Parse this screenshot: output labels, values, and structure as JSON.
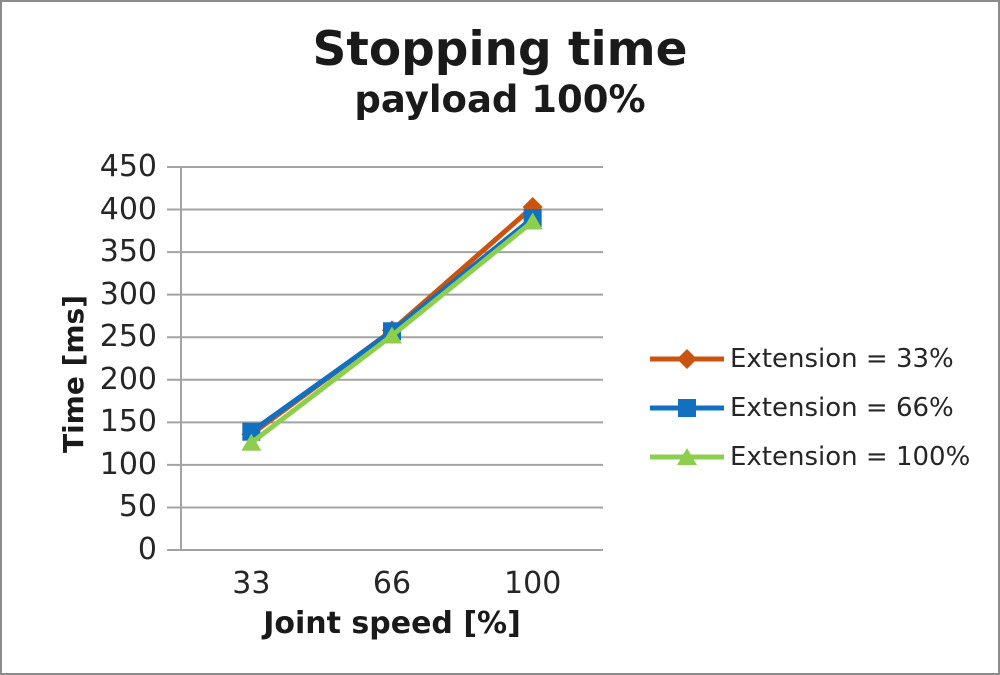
{
  "chart_data": {
    "type": "line",
    "title": "Stopping time",
    "subtitle": "payload 100%",
    "xlabel": "Joint speed [%]",
    "ylabel": "Time [ms]",
    "categories": [
      "33",
      "66",
      "100"
    ],
    "series": [
      {
        "name": "Extension = 33%",
        "color": "#C8540F",
        "marker": "diamond",
        "values": [
          136,
          258,
          403
        ]
      },
      {
        "name": "Extension = 66%",
        "color": "#1170C0",
        "marker": "square",
        "values": [
          139,
          257,
          390
        ]
      },
      {
        "name": "Extension = 100%",
        "color": "#8DCE4D",
        "marker": "triangle",
        "values": [
          126,
          252,
          386
        ]
      }
    ],
    "ylim": [
      0,
      450
    ],
    "yticks": [
      0,
      50,
      100,
      150,
      200,
      250,
      300,
      350,
      400,
      450
    ],
    "grid": true,
    "legend_position": "right",
    "gridline_color": "#A3A3A3",
    "text_color": "#262626",
    "frame_border_color": "#8C8C8C"
  }
}
